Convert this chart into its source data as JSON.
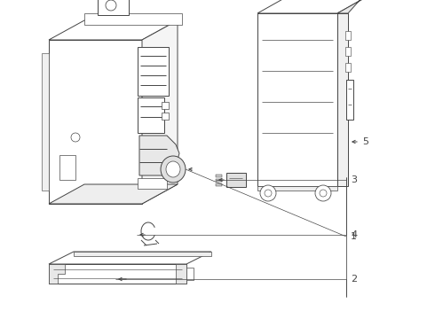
{
  "background_color": "#ffffff",
  "line_color": "#444444",
  "line_width": 0.7,
  "fig_w": 4.9,
  "fig_h": 3.6,
  "dpi": 100
}
